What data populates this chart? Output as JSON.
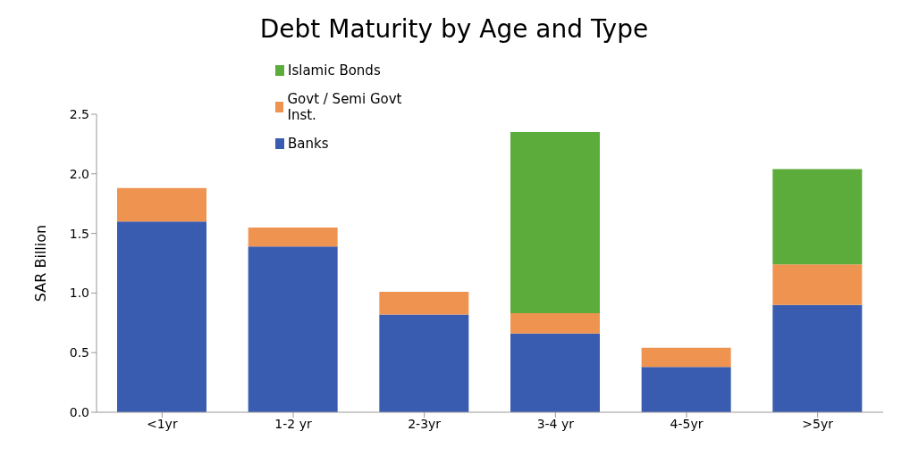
{
  "chart_data": {
    "type": "bar",
    "title": "Debt Maturity by Age and Type",
    "ylabel": "SAR Billion",
    "categories": [
      "<1yr",
      "1-2 yr",
      "2-3yr",
      "3-4 yr",
      "4-5yr",
      ">5yr"
    ],
    "series": [
      {
        "name": "Banks",
        "color": "#3a5cb0",
        "values": [
          1.6,
          1.39,
          0.82,
          0.66,
          0.38,
          0.9
        ]
      },
      {
        "name": "Govt / Semi Govt Inst.",
        "color": "#ef9350",
        "values": [
          0.28,
          0.16,
          0.19,
          0.17,
          0.16,
          0.34
        ]
      },
      {
        "name": "Islamic Bonds",
        "color": "#5cac3c",
        "values": [
          null,
          null,
          null,
          1.52,
          null,
          0.8
        ]
      }
    ],
    "stacked": true,
    "ylim": [
      0,
      2.5
    ],
    "yticks": [
      {
        "value": 0,
        "label": "0.0"
      },
      {
        "value": 0.5,
        "label": "0.5"
      },
      {
        "value": 1,
        "label": "1.0"
      },
      {
        "value": 1.5,
        "label": "1.5"
      },
      {
        "value": 2,
        "label": "2.0"
      },
      {
        "value": 2.5,
        "label": "2.5"
      }
    ],
    "grid": false,
    "legend": "top"
  }
}
